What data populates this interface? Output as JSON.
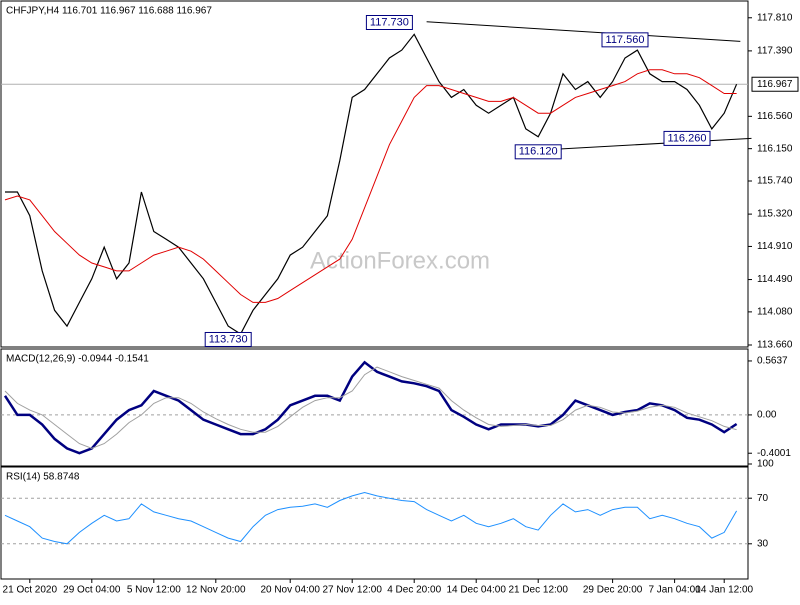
{
  "chart_data": [
    {
      "type": "line",
      "title": "CHFJPY,H4  116.701 116.967 116.688 116.967",
      "watermark": "ActionForex.com",
      "ylim": [
        113.66,
        118.01
      ],
      "yticks": [
        {
          "value": 117.81,
          "label": "117.810"
        },
        {
          "value": 117.39,
          "label": "117.390"
        },
        {
          "value": 116.56,
          "label": "116.560"
        },
        {
          "value": 116.15,
          "label": "116.150"
        },
        {
          "value": 115.74,
          "label": "115.740"
        },
        {
          "value": 115.32,
          "label": "115.320"
        },
        {
          "value": 114.91,
          "label": "114.910"
        },
        {
          "value": 114.49,
          "label": "114.490"
        },
        {
          "value": 114.08,
          "label": "114.080"
        },
        {
          "value": 113.66,
          "label": "113.660"
        }
      ],
      "last": {
        "value": 116.967,
        "label": "116.967"
      },
      "series": [
        {
          "color": "#000000",
          "values": [
            115.6,
            115.6,
            115.3,
            114.6,
            114.1,
            113.9,
            114.2,
            114.5,
            114.9,
            114.5,
            114.7,
            115.6,
            115.1,
            115.0,
            114.9,
            114.7,
            114.5,
            114.2,
            113.9,
            113.8,
            114.1,
            114.3,
            114.5,
            114.8,
            114.9,
            115.1,
            115.3,
            116.0,
            116.8,
            116.9,
            117.1,
            117.3,
            117.4,
            117.6,
            117.3,
            117.0,
            116.8,
            116.9,
            116.7,
            116.6,
            116.7,
            116.8,
            116.4,
            116.3,
            116.6,
            117.1,
            116.9,
            117.0,
            116.8,
            117.0,
            117.3,
            117.4,
            117.1,
            117.0,
            117.0,
            116.9,
            116.7,
            116.4,
            116.6,
            116.967
          ]
        },
        {
          "color": "#e00000",
          "values": [
            115.5,
            115.55,
            115.5,
            115.3,
            115.1,
            114.95,
            114.8,
            114.7,
            114.65,
            114.6,
            114.6,
            114.7,
            114.8,
            114.85,
            114.9,
            114.85,
            114.75,
            114.6,
            114.45,
            114.3,
            114.2,
            114.2,
            114.25,
            114.35,
            114.45,
            114.55,
            114.65,
            114.75,
            115.0,
            115.4,
            115.8,
            116.2,
            116.5,
            116.8,
            116.95,
            116.95,
            116.9,
            116.85,
            116.8,
            116.75,
            116.75,
            116.8,
            116.7,
            116.6,
            116.6,
            116.7,
            116.8,
            116.85,
            116.9,
            116.95,
            117.0,
            117.1,
            117.15,
            117.15,
            117.1,
            117.1,
            117.05,
            116.95,
            116.85,
            116.85
          ]
        }
      ],
      "trendlines": [
        {
          "x": [
            34,
            59.3
          ],
          "y": [
            117.76,
            117.51
          ]
        },
        {
          "x": [
            44,
            60.2
          ],
          "y": [
            116.14,
            116.28
          ]
        }
      ],
      "annotations": [
        {
          "x": 31,
          "value": 117.75,
          "label": "117.730"
        },
        {
          "x": 50,
          "value": 117.53,
          "label": "117.560"
        },
        {
          "x": 43,
          "value": 116.11,
          "label": "116.120"
        },
        {
          "x": 55,
          "value": 116.28,
          "label": "116.260"
        },
        {
          "x": 18,
          "value": 113.73,
          "label": "113.730"
        }
      ]
    },
    {
      "type": "line",
      "title": "MACD(12,26,9) -0.0944 -0.1541",
      "ylim": [
        -0.544,
        0.699
      ],
      "yticks": [
        0.5637,
        {
          "value": 0,
          "label": "0.00"
        },
        -0.4001
      ],
      "dashed": [
        0
      ],
      "series": [
        {
          "color": "#000080",
          "values": [
            0.2,
            0.0,
            0.0,
            -0.1,
            -0.25,
            -0.35,
            -0.4,
            -0.35,
            -0.2,
            -0.05,
            0.05,
            0.1,
            0.25,
            0.2,
            0.15,
            0.05,
            -0.05,
            -0.1,
            -0.15,
            -0.2,
            -0.2,
            -0.15,
            -0.05,
            0.1,
            0.15,
            0.2,
            0.2,
            0.15,
            0.4,
            0.55,
            0.45,
            0.4,
            0.35,
            0.33,
            0.3,
            0.25,
            0.05,
            -0.02,
            -0.1,
            -0.15,
            -0.1,
            -0.1,
            -0.1,
            -0.12,
            -0.1,
            0.0,
            0.15,
            0.1,
            0.05,
            0.0,
            0.03,
            0.05,
            0.12,
            0.1,
            0.05,
            -0.03,
            -0.05,
            -0.1,
            -0.18,
            -0.0944
          ]
        },
        {
          "color": "#a0a0a0",
          "values": [
            0.25,
            0.12,
            0.05,
            0.0,
            -0.1,
            -0.2,
            -0.3,
            -0.35,
            -0.3,
            -0.2,
            -0.08,
            0.0,
            0.12,
            0.18,
            0.18,
            0.12,
            0.03,
            -0.04,
            -0.1,
            -0.15,
            -0.18,
            -0.18,
            -0.12,
            -0.02,
            0.08,
            0.15,
            0.18,
            0.18,
            0.25,
            0.42,
            0.5,
            0.45,
            0.4,
            0.36,
            0.32,
            0.28,
            0.15,
            0.05,
            -0.03,
            -0.1,
            -0.12,
            -0.11,
            -0.1,
            -0.11,
            -0.11,
            -0.05,
            0.05,
            0.1,
            0.08,
            0.03,
            0.02,
            0.04,
            0.08,
            0.1,
            0.08,
            0.02,
            -0.02,
            -0.06,
            -0.12,
            -0.1541
          ]
        }
      ]
    },
    {
      "type": "line",
      "title": "RSI(14) 58.8748",
      "ylim": [
        0,
        100
      ],
      "yticks": [
        100,
        70,
        30
      ],
      "dashed": [
        70,
        30
      ],
      "categories": [
        null,
        null,
        "21 Oct 2020",
        null,
        null,
        null,
        null,
        "29 Oct 04:00",
        null,
        null,
        null,
        null,
        "5 Nov 12:00",
        null,
        null,
        null,
        null,
        "12 Nov 20:00",
        null,
        null,
        null,
        null,
        null,
        "20 Nov 04:00",
        null,
        null,
        null,
        null,
        "27 Nov 12:00",
        null,
        null,
        null,
        null,
        "4 Dec 20:00",
        null,
        null,
        null,
        null,
        "14 Dec 04:00",
        null,
        null,
        null,
        null,
        "21 Dec 12:00",
        null,
        null,
        null,
        null,
        null,
        "29 Dec 20:00",
        null,
        null,
        null,
        null,
        "7 Jan 04:00",
        null,
        null,
        null,
        "14 Jan 12:00",
        null
      ],
      "series": [
        {
          "color": "#1e90ff",
          "values": [
            55,
            50,
            45,
            35,
            32,
            30,
            40,
            48,
            55,
            50,
            52,
            65,
            58,
            55,
            52,
            50,
            45,
            40,
            35,
            32,
            45,
            55,
            60,
            62,
            63,
            65,
            62,
            68,
            72,
            75,
            72,
            70,
            68,
            67,
            60,
            55,
            50,
            55,
            48,
            45,
            48,
            52,
            45,
            42,
            55,
            65,
            58,
            60,
            55,
            60,
            62,
            62,
            52,
            55,
            52,
            48,
            45,
            35,
            40,
            58.8748
          ]
        }
      ]
    }
  ]
}
